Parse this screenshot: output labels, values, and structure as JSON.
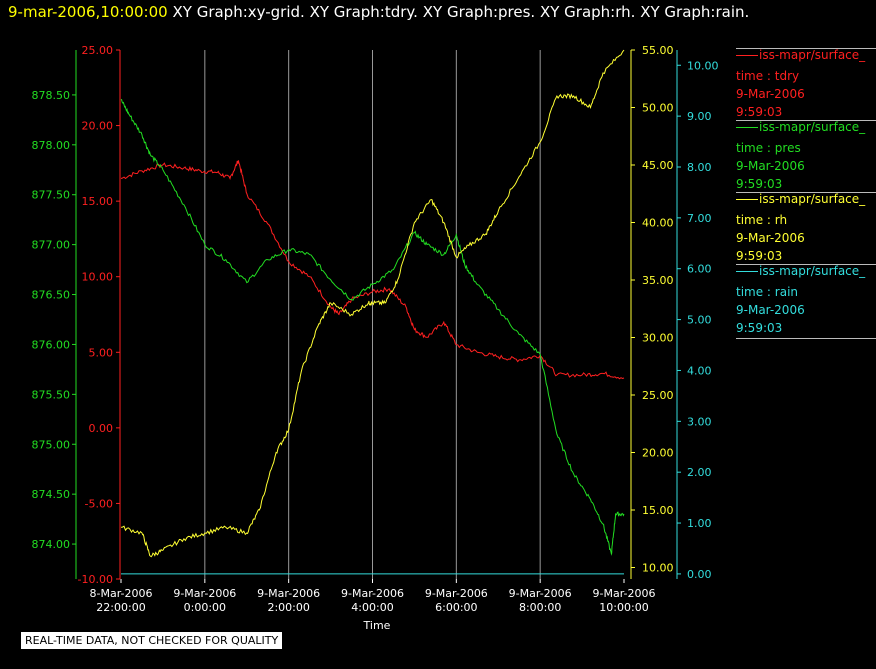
{
  "header": {
    "timestamp": "9-mar-2006,10:00:00",
    "titles": [
      "XY Graph:xy-grid.",
      "XY Graph:tdry.",
      "XY Graph:pres.",
      "XY Graph:rh.",
      "XY Graph:rain."
    ]
  },
  "legend": [
    {
      "name": "iss-mapr/surface_",
      "field": "time : tdry",
      "date": "9-Mar-2006",
      "time": "9:59:03",
      "color": "#ff2020"
    },
    {
      "name": "iss-mapr/surface_",
      "field": "time : pres",
      "date": "9-Mar-2006",
      "time": "9:59:03",
      "color": "#22dd22"
    },
    {
      "name": "iss-mapr/surface_",
      "field": "time : rh",
      "date": "9-Mar-2006",
      "time": "9:59:03",
      "color": "#ffff33"
    },
    {
      "name": "iss-mapr/surface_",
      "field": "time : rain",
      "date": "9-Mar-2006",
      "time": "9:59:03",
      "color": "#33dddd"
    }
  ],
  "notice": "REAL-TIME DATA, NOT CHECKED FOR QUALITY",
  "chart_data": {
    "type": "line",
    "xlabel": "Time",
    "x_ticks": [
      {
        "date": "8-Mar-2006",
        "time": "22:00:00",
        "h": 0
      },
      {
        "date": "9-Mar-2006",
        "time": "0:00:00",
        "h": 2
      },
      {
        "date": "9-Mar-2006",
        "time": "2:00:00",
        "h": 4
      },
      {
        "date": "9-Mar-2006",
        "time": "4:00:00",
        "h": 6
      },
      {
        "date": "9-Mar-2006",
        "time": "6:00:00",
        "h": 8
      },
      {
        "date": "9-Mar-2006",
        "time": "8:00:00",
        "h": 10
      },
      {
        "date": "9-Mar-2006",
        "time": "10:00:00",
        "h": 12
      }
    ],
    "xlim_hours": [
      0,
      12
    ],
    "grid": "vertical",
    "axes": {
      "pres": {
        "color": "#22dd22",
        "ticks": [
          "878.50",
          "878.00",
          "877.50",
          "877.00",
          "876.50",
          "876.00",
          "875.50",
          "875.00",
          "874.50",
          "874.00"
        ],
        "ylim": [
          873.65,
          878.95
        ]
      },
      "tdry": {
        "color": "#ff2020",
        "ticks": [
          "25.00",
          "20.00",
          "15.00",
          "10.00",
          "5.00",
          "0.00",
          "-5.00",
          "-10.00"
        ],
        "ylim": [
          -10,
          25
        ]
      },
      "rh": {
        "color": "#ffff33",
        "ticks": [
          "55.00",
          "50.00",
          "45.00",
          "40.00",
          "35.00",
          "30.00",
          "25.00",
          "20.00",
          "15.00",
          "10.00"
        ],
        "ylim": [
          9,
          55
        ]
      },
      "rain": {
        "color": "#33dddd",
        "ticks": [
          "10.00",
          "9.00",
          "8.00",
          "7.00",
          "6.00",
          "5.00",
          "4.00",
          "3.00",
          "2.00",
          "1.00",
          "0.00"
        ],
        "ylim": [
          -0.1,
          10.3
        ]
      }
    },
    "series": [
      {
        "name": "tdry",
        "axis": "tdry",
        "color": "#ff2020",
        "x": [
          0,
          0.5,
          1,
          1.5,
          1.9,
          2.3,
          2.6,
          2.8,
          3,
          3.5,
          4,
          4.5,
          5,
          5.2,
          5.5,
          6,
          6.4,
          6.8,
          7,
          7.3,
          7.7,
          8,
          8.5,
          9,
          9.5,
          10,
          10.4,
          11,
          11.5,
          12
        ],
        "y": [
          16.5,
          17,
          17.4,
          17.2,
          17.0,
          16.9,
          16.5,
          17.7,
          15.5,
          13.5,
          11,
          10,
          8,
          7.5,
          8.5,
          9,
          9.2,
          8,
          6.5,
          6,
          7,
          5.5,
          5,
          4.7,
          4.5,
          4.8,
          3.5,
          3.5,
          3.6,
          3.3
        ]
      },
      {
        "name": "pres",
        "axis": "pres",
        "color": "#22dd22",
        "x": [
          0,
          0.2,
          0.5,
          0.7,
          1,
          1.5,
          2,
          2.5,
          3,
          3.5,
          4,
          4.5,
          5,
          5.5,
          6,
          6.5,
          7,
          7.3,
          7.7,
          8,
          8.2,
          8.5,
          9,
          9.5,
          10,
          10.4,
          10.8,
          11.2,
          11.5,
          11.7,
          11.8,
          12
        ],
        "y": [
          878.45,
          878.3,
          878.1,
          877.9,
          877.75,
          877.4,
          877.0,
          876.85,
          876.62,
          876.85,
          876.95,
          876.9,
          876.65,
          876.45,
          876.6,
          876.75,
          877.12,
          877.0,
          876.9,
          877.1,
          876.8,
          876.6,
          876.35,
          876.1,
          875.9,
          875.1,
          874.7,
          874.45,
          874.2,
          873.9,
          874.3,
          874.3
        ]
      },
      {
        "name": "rh",
        "axis": "rh",
        "color": "#ffff33",
        "x": [
          0,
          0.5,
          0.7,
          1,
          1.5,
          2,
          2.5,
          3,
          3.3,
          3.7,
          4,
          4.3,
          4.7,
          5,
          5.5,
          5.9,
          6,
          6.3,
          6.6,
          7,
          7.4,
          7.7,
          8,
          8.3,
          8.7,
          9,
          9.5,
          10,
          10.4,
          10.8,
          11.2,
          11.5,
          12
        ],
        "y": [
          13.5,
          13,
          11,
          11.5,
          12.5,
          13,
          13.5,
          13,
          15,
          20,
          22,
          27,
          31,
          33,
          32,
          33,
          33,
          33,
          35,
          40,
          42,
          40,
          37,
          38,
          39,
          41,
          44,
          47,
          51,
          51,
          50,
          53,
          55
        ]
      },
      {
        "name": "rain",
        "axis": "rain",
        "color": "#33dddd",
        "x": [
          0,
          12
        ],
        "y": [
          0,
          0
        ]
      }
    ]
  }
}
